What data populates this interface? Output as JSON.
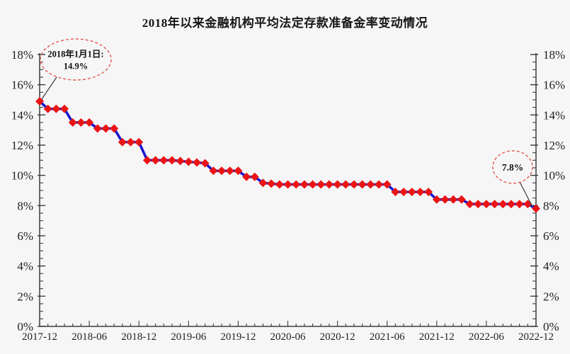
{
  "title": "2018年以来金融机构平均法定存款准备金率变动情况",
  "chart_data": {
    "type": "line",
    "title": "2018年以来金融机构平均法定存款准备金率变动情况",
    "x": [
      "2017-12",
      "2018-01",
      "2018-02",
      "2018-03",
      "2018-04",
      "2018-05",
      "2018-06",
      "2018-07",
      "2018-08",
      "2018-09",
      "2018-10",
      "2018-11",
      "2018-12",
      "2019-01",
      "2019-02",
      "2019-03",
      "2019-04",
      "2019-05",
      "2019-06",
      "2019-07",
      "2019-08",
      "2019-09",
      "2019-10",
      "2019-11",
      "2019-12",
      "2020-01",
      "2020-02",
      "2020-03",
      "2020-04",
      "2020-05",
      "2020-06",
      "2020-07",
      "2020-08",
      "2020-09",
      "2020-10",
      "2020-11",
      "2020-12",
      "2021-01",
      "2021-02",
      "2021-03",
      "2021-04",
      "2021-05",
      "2021-06",
      "2021-07",
      "2021-08",
      "2021-09",
      "2021-10",
      "2021-11",
      "2021-12",
      "2022-01",
      "2022-02",
      "2022-03",
      "2022-04",
      "2022-05",
      "2022-06",
      "2022-07",
      "2022-08",
      "2022-09",
      "2022-10",
      "2022-11",
      "2022-12"
    ],
    "values": [
      14.9,
      14.4,
      14.4,
      14.4,
      13.5,
      13.5,
      13.5,
      13.1,
      13.1,
      13.1,
      12.2,
      12.2,
      12.2,
      11.0,
      11.0,
      11.0,
      11.0,
      10.95,
      10.9,
      10.85,
      10.8,
      10.3,
      10.3,
      10.3,
      10.3,
      9.9,
      9.9,
      9.5,
      9.45,
      9.4,
      9.4,
      9.4,
      9.4,
      9.4,
      9.4,
      9.4,
      9.4,
      9.4,
      9.4,
      9.4,
      9.4,
      9.4,
      9.4,
      8.9,
      8.9,
      8.9,
      8.9,
      8.9,
      8.4,
      8.4,
      8.4,
      8.4,
      8.1,
      8.1,
      8.1,
      8.1,
      8.1,
      8.1,
      8.1,
      8.1,
      7.8
    ],
    "x_tick_labels": [
      "2017-12",
      "2018-06",
      "2018-12",
      "2019-06",
      "2019-12",
      "2020-06",
      "2020-12",
      "2021-06",
      "2021-12",
      "2022-06",
      "2022-12"
    ],
    "x_tick_every": 6,
    "y_ticks": [
      0,
      2,
      4,
      6,
      8,
      10,
      12,
      14,
      16,
      18
    ],
    "y_tick_suffix": "%",
    "ylim": [
      0,
      18
    ],
    "grid": false,
    "legend": "none",
    "line_color": "#1a17cf",
    "marker_color": "#e91414",
    "marker_shape": "diamond",
    "axis_color": "#3c3c3c",
    "annotation_stroke": "#e2574d",
    "annotations": [
      {
        "lines": [
          "2018年1月1日:",
          "14.9%"
        ],
        "value": "14.9%",
        "ellipse": {
          "cx": 107,
          "cy": 84,
          "rx": 50,
          "ry": 29
        },
        "pointer": {
          "x1": 80,
          "y1": 109,
          "x2": 59,
          "y2": 140
        }
      },
      {
        "lines": [
          "7.8%"
        ],
        "value": "7.8%",
        "ellipse": {
          "cx": 724,
          "cy": 236,
          "rx": 28,
          "ry": 23
        },
        "pointer": {
          "x1": 734,
          "y1": 257,
          "x2": 752,
          "y2": 292
        }
      }
    ]
  }
}
